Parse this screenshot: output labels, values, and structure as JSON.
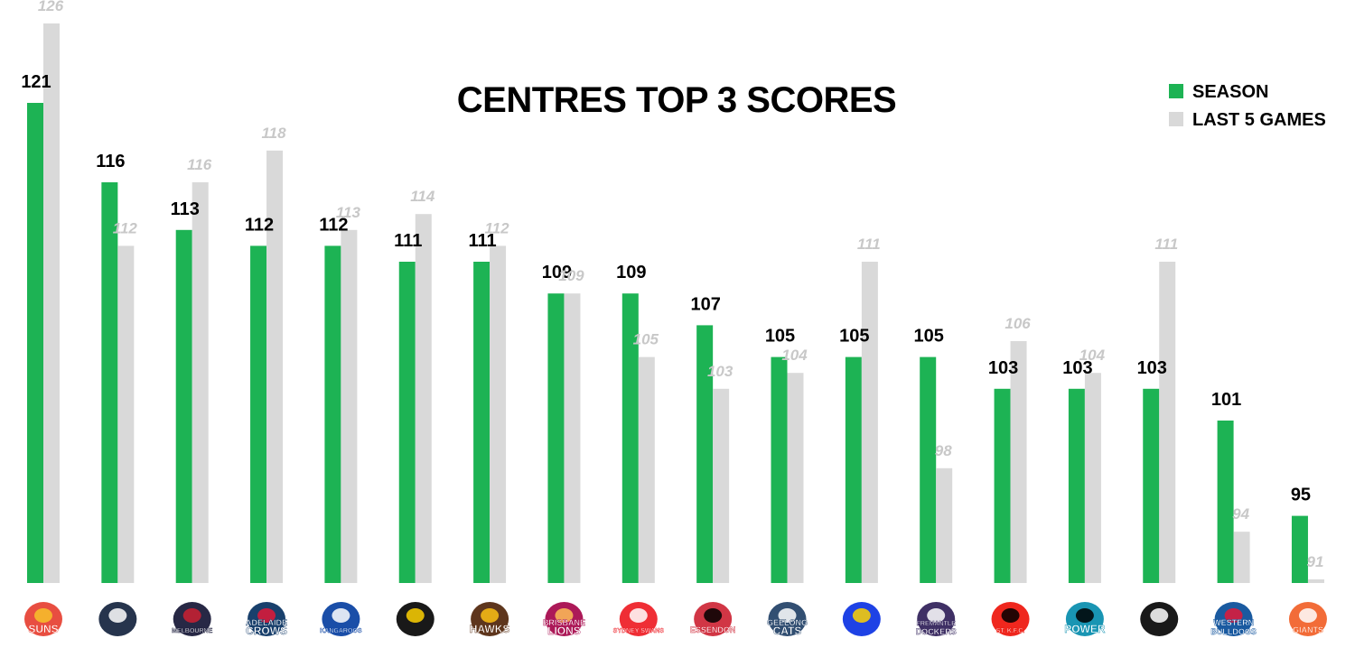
{
  "chart_data": {
    "type": "bar",
    "title": "CENTRES TOP 3 SCORES",
    "categories": [
      "SUNS",
      "CARLTON",
      "MELBOURNE",
      "ADELAIDE CROWS",
      "KANGAROOS",
      "TIGERS",
      "HAWKS",
      "BRISBANE LIONS",
      "SYDNEY SWANS",
      "ESSENDON",
      "GEELONG CATS",
      "WEST COAST EAGLES",
      "FREMANTLE DOCKERS",
      "ST. K.F.C.",
      "POWER",
      "COLLINGWOOD",
      "WESTERN BULLDOGS",
      "GIANTS"
    ],
    "series": [
      {
        "name": "SEASON",
        "values": [
          121,
          116,
          113,
          112,
          112,
          111,
          111,
          109,
          109,
          107,
          105,
          105,
          105,
          103,
          103,
          103,
          101,
          95
        ]
      },
      {
        "name": "LAST 5 GAMES",
        "values": [
          126,
          112,
          116,
          118,
          113,
          114,
          112,
          109,
          105,
          103,
          104,
          111,
          98,
          106,
          104,
          111,
          94,
          91
        ]
      }
    ],
    "legend_position": "top-right",
    "grid": false,
    "colors": {
      "season": "#1db354",
      "last5": "#d9d9d9",
      "last5_label": "#c8c8c8"
    }
  },
  "logos": [
    {
      "icon": "suns-logo",
      "lines": [
        "SUNS"
      ],
      "colors": [
        "#e53b2c",
        "#f7c22a"
      ]
    },
    {
      "icon": "carlton-logo",
      "lines": [],
      "colors": [
        "#0e1e3a",
        "#ffffff"
      ]
    },
    {
      "icon": "melbourne-logo",
      "lines": [
        "MELBOURNE"
      ],
      "colors": [
        "#0f1131",
        "#cc2031"
      ]
    },
    {
      "icon": "adelaide-crows-logo",
      "lines": [
        "ADELAIDE",
        "CROWS"
      ],
      "colors": [
        "#002b5c",
        "#e21937"
      ]
    },
    {
      "icon": "kangaroos-logo",
      "lines": [
        "KANGAROOS"
      ],
      "colors": [
        "#013b9f",
        "#ffffff"
      ]
    },
    {
      "icon": "richmond-tigers-logo",
      "lines": [],
      "colors": [
        "#000000",
        "#fed102"
      ]
    },
    {
      "icon": "hawks-logo",
      "lines": [
        "HAWKS"
      ],
      "colors": [
        "#4d2004",
        "#fbbf15"
      ]
    },
    {
      "icon": "brisbane-lions-logo",
      "lines": [
        "BRISBANE",
        "LIONS"
      ],
      "colors": [
        "#a30046",
        "#fdbe57"
      ]
    },
    {
      "icon": "sydney-swans-logo",
      "lines": [
        "SYDNEY SWANS"
      ],
      "colors": [
        "#ed171f",
        "#ffffff"
      ]
    },
    {
      "icon": "essendon-logo",
      "lines": [
        "ESSENDON"
      ],
      "colors": [
        "#cc2031",
        "#000000"
      ]
    },
    {
      "icon": "geelong-cats-logo",
      "lines": [
        "GEELONG",
        "CATS"
      ],
      "colors": [
        "#1c3c63",
        "#ffffff"
      ]
    },
    {
      "icon": "west-coast-eagles-logo",
      "lines": [],
      "colors": [
        "#062ee2",
        "#ffd200"
      ]
    },
    {
      "icon": "fremantle-dockers-logo",
      "lines": [
        "FREMANTLE",
        "DOCKERS"
      ],
      "colors": [
        "#2a1a54",
        "#ffffff"
      ]
    },
    {
      "icon": "st-kilda-logo",
      "lines": [
        "ST. K.F.C."
      ],
      "colors": [
        "#ed0f05",
        "#000000"
      ]
    },
    {
      "icon": "port-adelaide-power-logo",
      "lines": [
        "POWER"
      ],
      "colors": [
        "#008aab",
        "#000000"
      ]
    },
    {
      "icon": "collingwood-logo",
      "lines": [],
      "colors": [
        "#000000",
        "#ffffff"
      ]
    },
    {
      "icon": "western-bulldogs-logo",
      "lines": [
        "WESTERN",
        "BULLDOGS"
      ],
      "colors": [
        "#014896",
        "#e31937"
      ]
    },
    {
      "icon": "gws-giants-logo",
      "lines": [
        "GIANTS"
      ],
      "colors": [
        "#f15c22",
        "#ffffff"
      ]
    }
  ]
}
